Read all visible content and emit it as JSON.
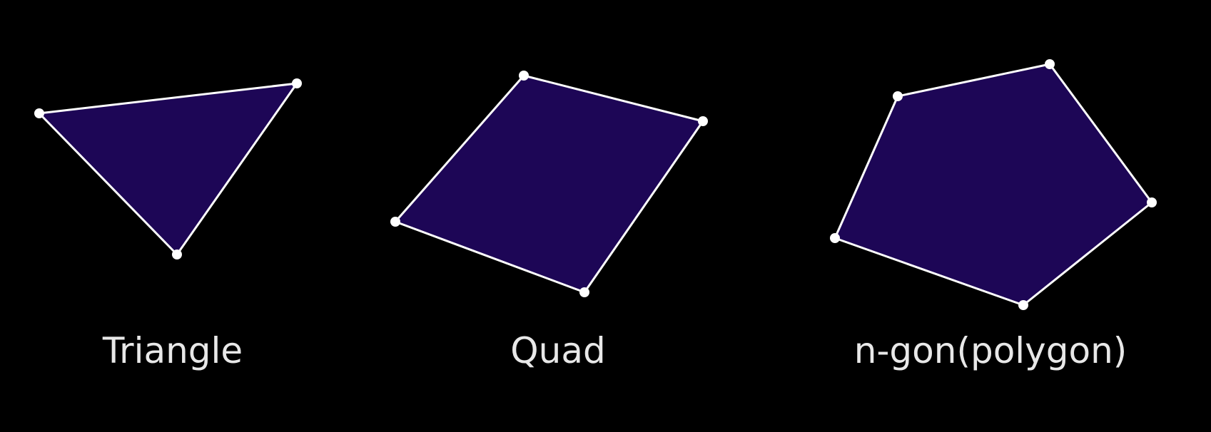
{
  "colors": {
    "background": "#000000",
    "fill": "#1d0656",
    "stroke": "#ffffff",
    "label": "#e8e8e8"
  },
  "shapes": [
    {
      "id": "triangle",
      "label": "Triangle",
      "vertex_count": 3
    },
    {
      "id": "quad",
      "label": "Quad",
      "vertex_count": 4
    },
    {
      "id": "ngon",
      "label": "n-gon(polygon)",
      "vertex_count": 5
    }
  ]
}
